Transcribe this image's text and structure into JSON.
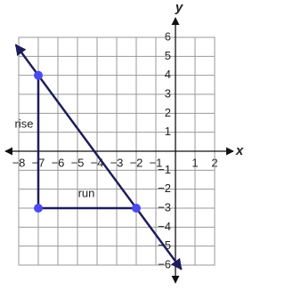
{
  "chart_data": {
    "type": "line",
    "x_label": "x",
    "y_label": "y",
    "xlim": [
      -8,
      2
    ],
    "ylim": [
      -6,
      6
    ],
    "xticks": [
      {
        "value": -8,
        "label": "−8"
      },
      {
        "value": -7,
        "label": "−7"
      },
      {
        "value": -6,
        "label": "−6"
      },
      {
        "value": -5,
        "label": "−5"
      },
      {
        "value": -4,
        "label": "−4"
      },
      {
        "value": -3,
        "label": "−3"
      },
      {
        "value": -2,
        "label": "−2"
      },
      {
        "value": -1,
        "label": "−1"
      },
      1,
      2
    ],
    "yticks": [
      6,
      5,
      4,
      3,
      2,
      1,
      {
        "value": -1,
        "label": "−1"
      },
      {
        "value": -2,
        "label": "−2"
      },
      {
        "value": -3,
        "label": "−3"
      },
      {
        "value": -4,
        "label": "−4"
      },
      {
        "value": -5,
        "label": "−5"
      },
      {
        "value": -6,
        "label": "−6"
      }
    ],
    "grid": true,
    "line": {
      "x": [
        -7,
        -2
      ],
      "y": [
        4,
        -3
      ],
      "color": "#1f1c5c"
    },
    "points": {
      "x": [
        -7,
        -7,
        -2
      ],
      "y": [
        4,
        -3,
        -3
      ],
      "color": "#4a4aef"
    },
    "annotations": [
      "rise",
      "run"
    ]
  }
}
